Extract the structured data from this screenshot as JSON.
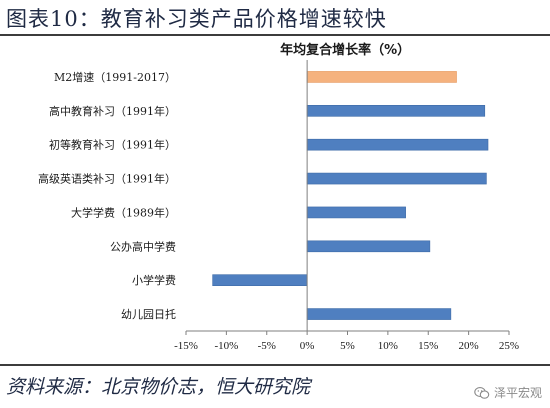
{
  "figure": {
    "title": "图表10：教育补习类产品价格增速较快",
    "source": "资料来源：北京物价志，恒大研究院",
    "watermark": "泽平宏观",
    "watermark_icon": "wechat-icon"
  },
  "colors": {
    "bar_main": "#4f7fc0",
    "bar_highlight": "#f5b27e",
    "axis": "#7f7f7f",
    "text": "#1f2a44"
  },
  "chart_data": {
    "type": "bar",
    "orientation": "horizontal",
    "title": "年均复合增长率（%）",
    "categories": [
      "M2增速（1991-2017）",
      "高中教育补习（1991年）",
      "初等教育补习（1991年）",
      "高级英语类补习（1991年）",
      "大学学费（1989年）",
      "公办高中学费",
      "小学学费",
      "幼儿园日托"
    ],
    "values": [
      18.5,
      22.0,
      22.4,
      22.2,
      12.2,
      15.2,
      -11.7,
      17.8
    ],
    "highlight_index": 0,
    "xlim": [
      -15,
      25
    ],
    "xticks": [
      -15,
      -10,
      -5,
      0,
      5,
      10,
      15,
      20,
      25
    ],
    "xtick_labels": [
      "-15%",
      "-10%",
      "-5%",
      "0%",
      "5%",
      "10%",
      "15%",
      "20%",
      "25%"
    ],
    "grid": false,
    "legend": "none"
  }
}
